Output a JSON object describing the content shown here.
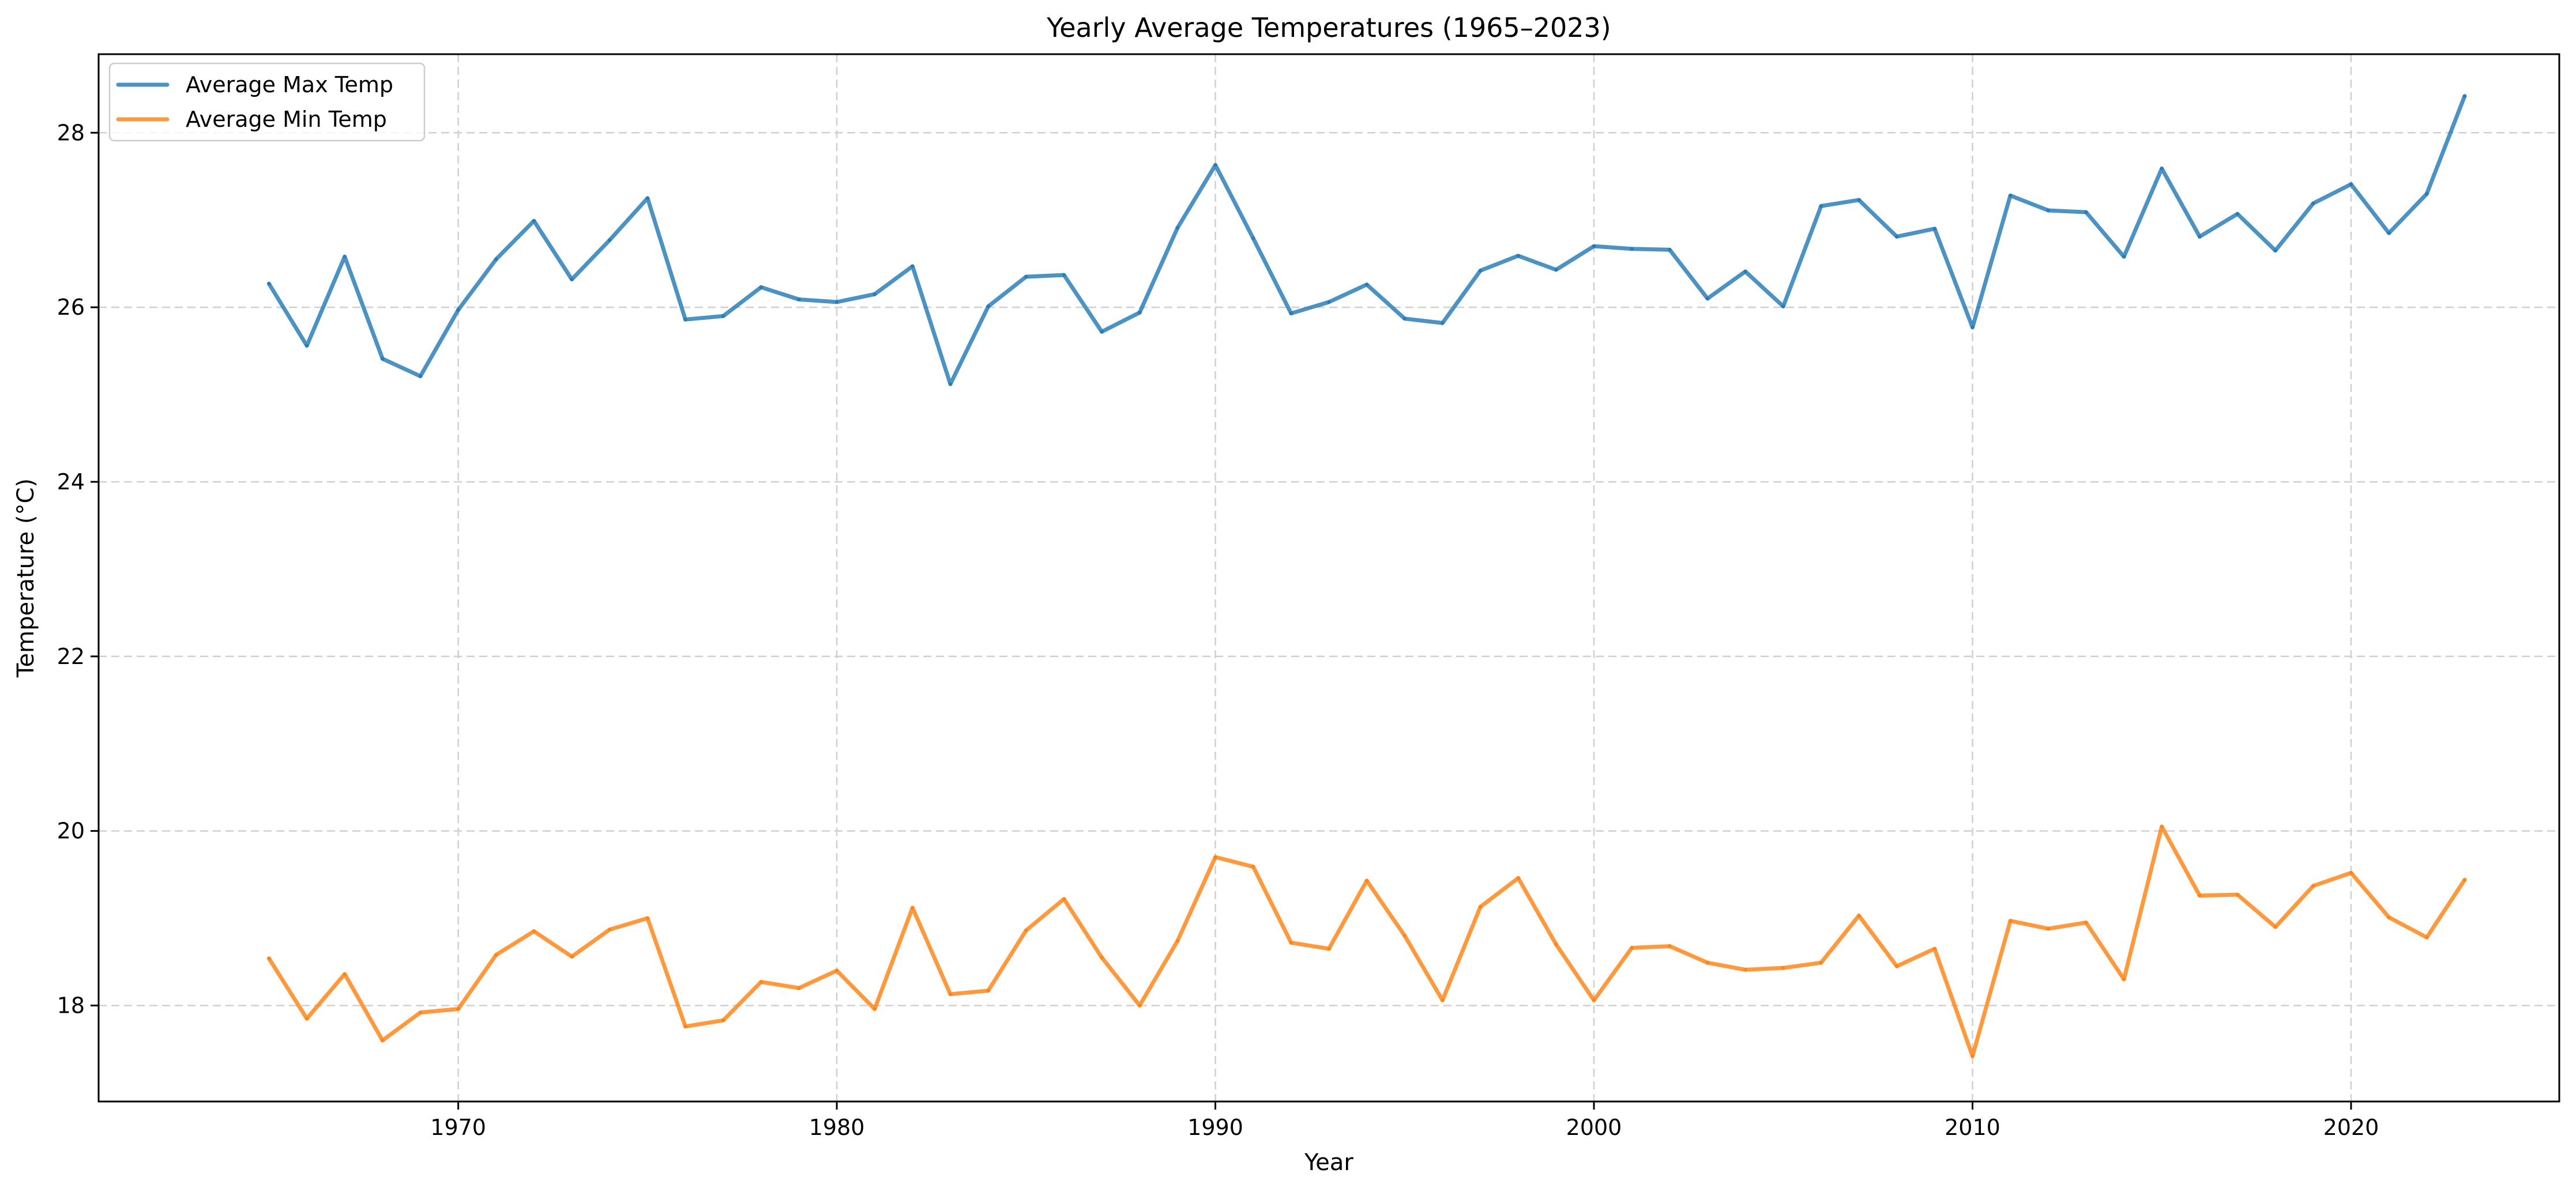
{
  "chart_data": {
    "type": "line",
    "title": "Yearly Average Temperatures (1965–2023)",
    "xlabel": "Year",
    "ylabel": "Temperature (°C)",
    "xlim": [
      1960.5,
      2025.5
    ],
    "ylim": [
      16.9,
      28.9
    ],
    "xticks": [
      1970,
      1980,
      1990,
      2000,
      2010,
      2020
    ],
    "yticks": [
      18,
      20,
      22,
      24,
      26,
      28
    ],
    "grid": true,
    "legend_position": "top-left",
    "x": [
      1965,
      1966,
      1967,
      1968,
      1969,
      1970,
      1971,
      1972,
      1973,
      1974,
      1975,
      1976,
      1977,
      1978,
      1979,
      1980,
      1981,
      1982,
      1983,
      1984,
      1985,
      1986,
      1987,
      1988,
      1989,
      1990,
      1991,
      1992,
      1993,
      1994,
      1995,
      1996,
      1997,
      1998,
      1999,
      2000,
      2001,
      2002,
      2003,
      2004,
      2005,
      2006,
      2007,
      2008,
      2009,
      2010,
      2011,
      2012,
      2013,
      2014,
      2015,
      2016,
      2017,
      2018,
      2019,
      2020,
      2021,
      2022,
      2023
    ],
    "series": [
      {
        "name": "Average Max Temp",
        "color": "#1f77b4",
        "values": [
          26.27,
          25.56,
          26.58,
          25.41,
          25.21,
          25.97,
          26.55,
          26.99,
          26.32,
          26.77,
          27.25,
          25.86,
          25.9,
          26.23,
          26.09,
          26.06,
          26.15,
          26.47,
          25.12,
          26.01,
          26.35,
          26.37,
          25.72,
          25.94,
          26.91,
          27.63,
          26.79,
          25.93,
          26.06,
          26.26,
          25.87,
          25.82,
          26.42,
          26.59,
          26.43,
          26.7,
          26.67,
          26.66,
          26.1,
          26.41,
          26.01,
          27.16,
          27.23,
          26.81,
          26.9,
          25.77,
          27.28,
          27.11,
          27.09,
          26.58,
          27.59,
          26.81,
          27.07,
          26.65,
          27.19,
          27.41,
          26.85,
          27.3,
          28.42
        ]
      },
      {
        "name": "Average Min Temp",
        "color": "#ff7f0e",
        "values": [
          18.54,
          17.85,
          18.36,
          17.6,
          17.92,
          17.96,
          18.58,
          18.85,
          18.56,
          18.87,
          19.0,
          17.76,
          17.83,
          18.27,
          18.2,
          18.4,
          17.96,
          19.12,
          18.13,
          18.17,
          18.86,
          19.22,
          18.55,
          18.0,
          18.74,
          19.7,
          19.59,
          18.72,
          18.65,
          19.43,
          18.8,
          18.06,
          19.13,
          19.46,
          18.7,
          18.06,
          18.66,
          18.68,
          18.49,
          18.41,
          18.43,
          18.49,
          19.03,
          18.45,
          18.65,
          17.42,
          18.97,
          18.88,
          18.95,
          18.3,
          20.05,
          19.26,
          19.27,
          18.9,
          19.37,
          19.52,
          19.01,
          18.78,
          19.44
        ]
      }
    ]
  }
}
